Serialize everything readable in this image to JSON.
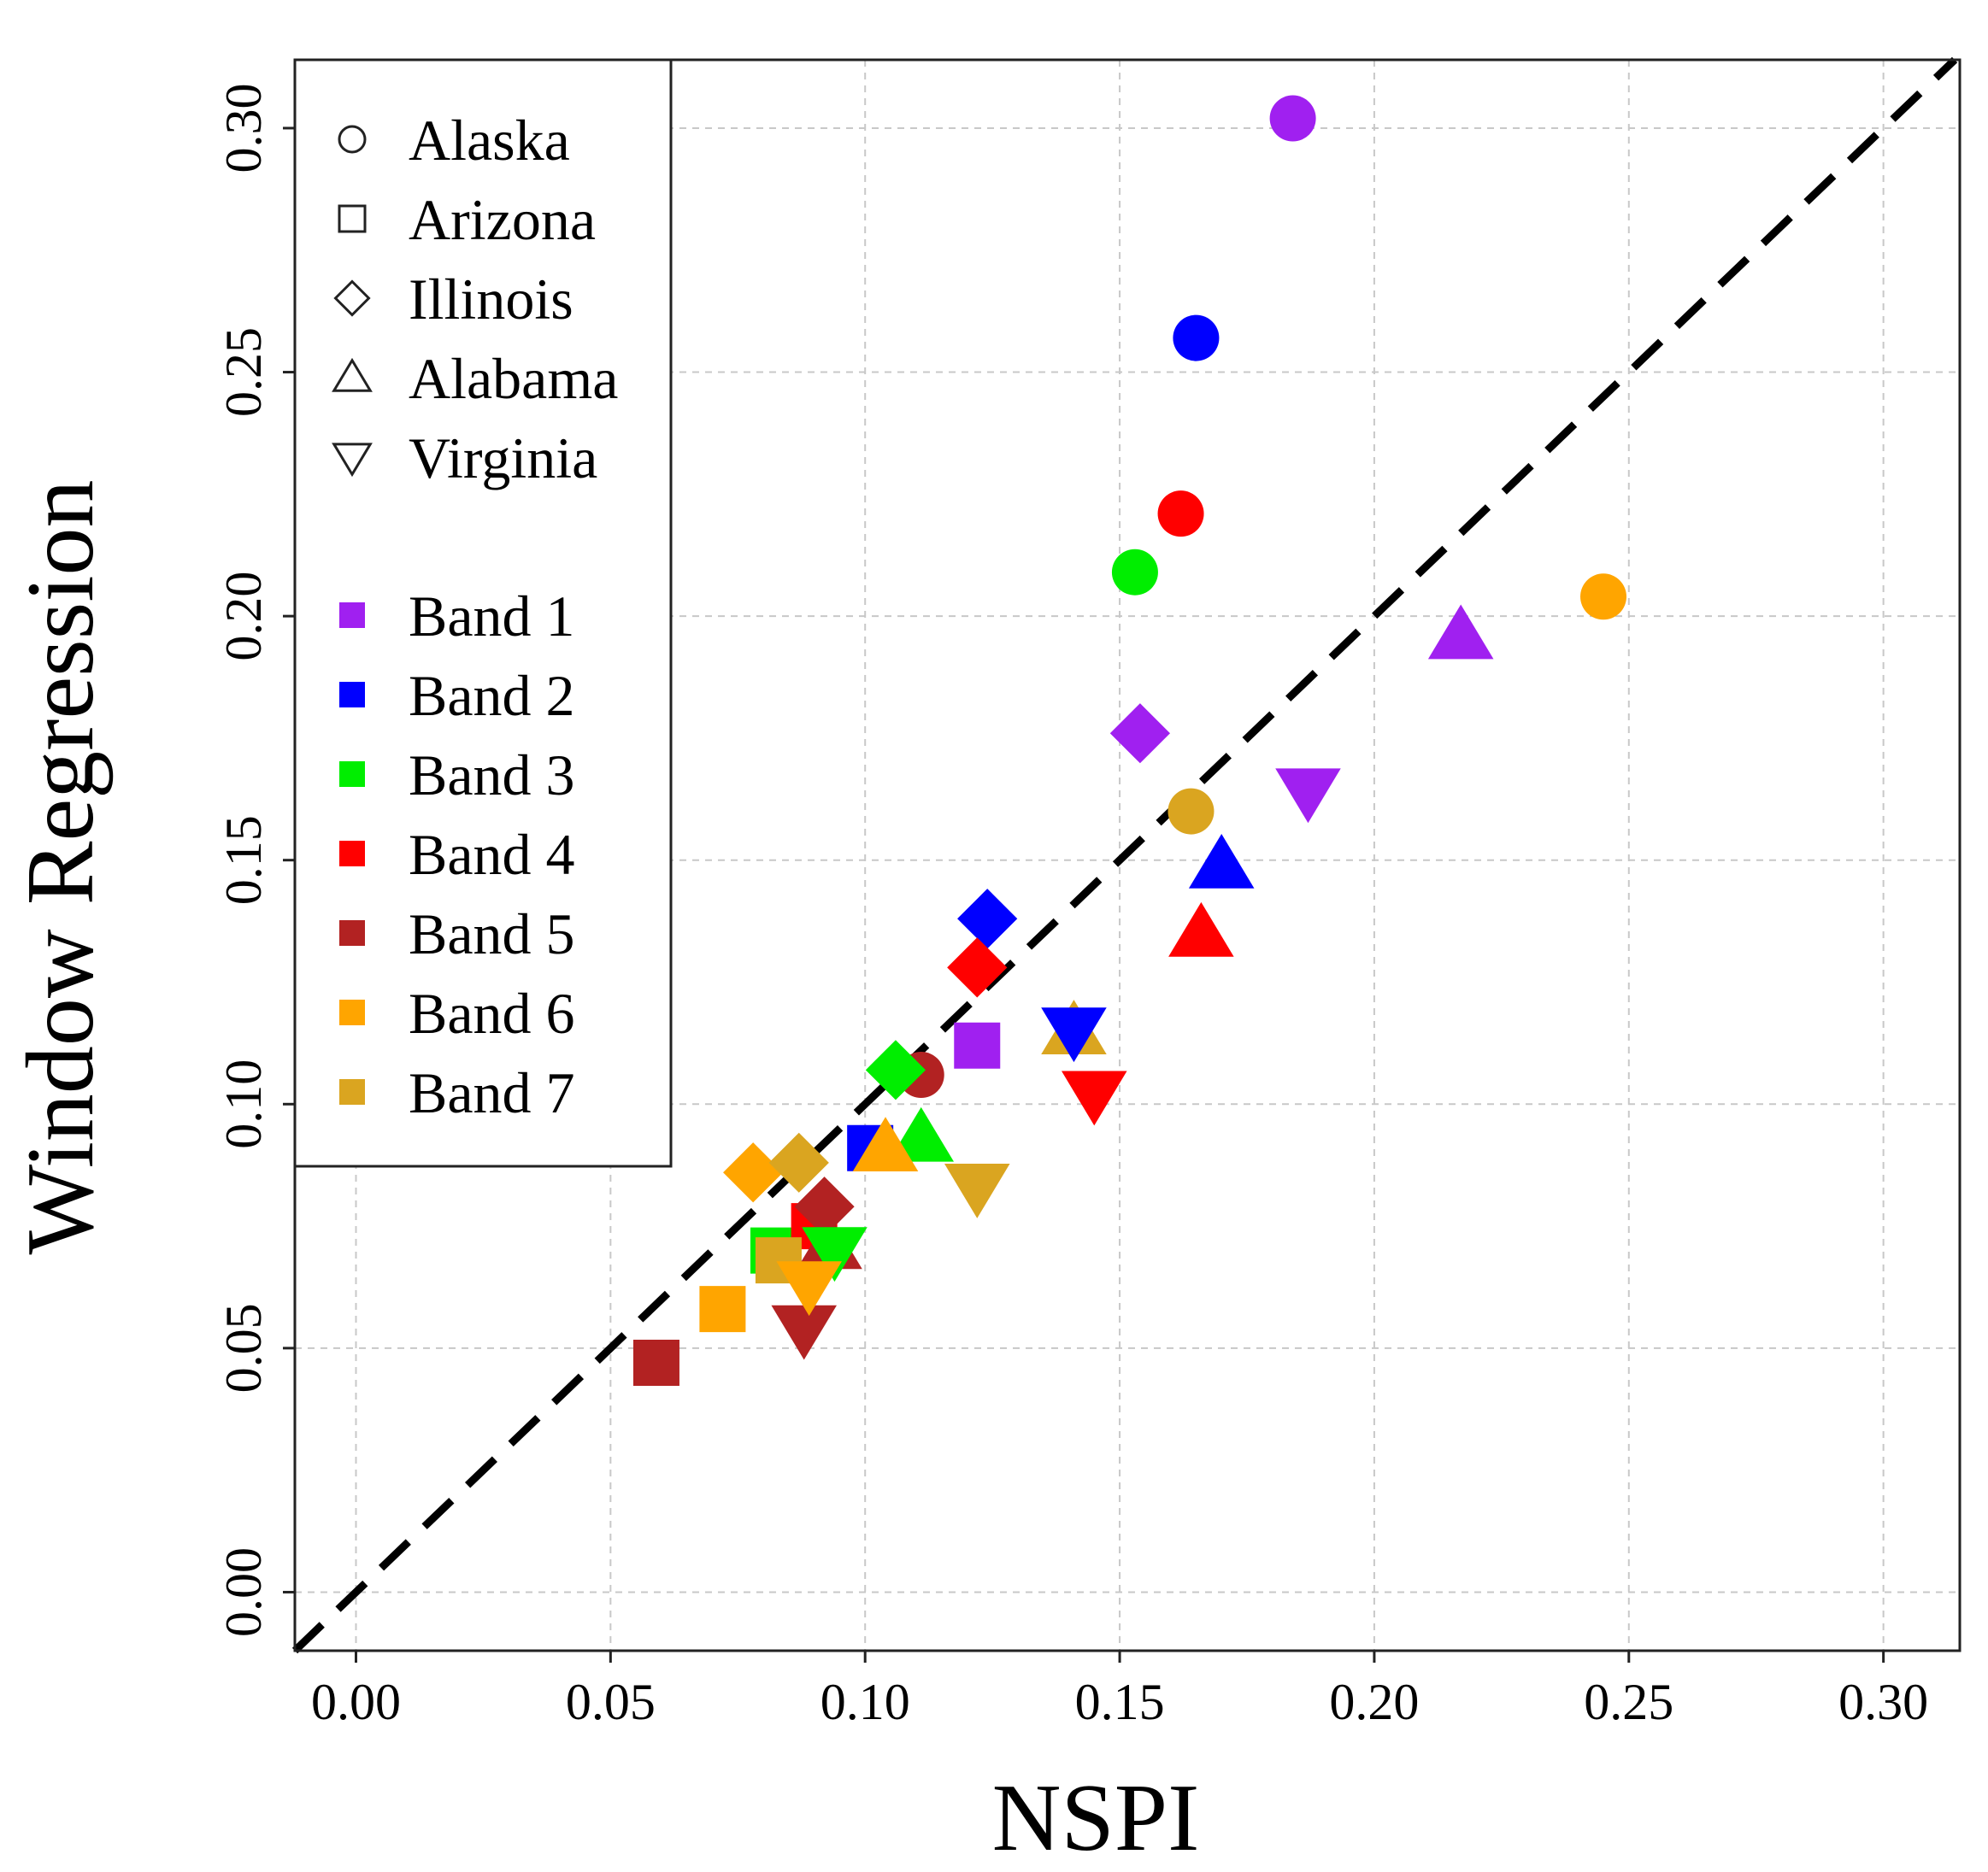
{
  "chart_data": {
    "type": "scatter",
    "xlabel": "NSPI",
    "ylabel": "Window Regression",
    "xlim": [
      -0.012,
      0.315
    ],
    "ylim": [
      -0.012,
      0.314
    ],
    "x_ticks": [
      "0.00",
      "0.05",
      "0.10",
      "0.15",
      "0.20",
      "0.25",
      "0.30"
    ],
    "y_ticks": [
      "0.00",
      "0.05",
      "0.10",
      "0.15",
      "0.20",
      "0.25",
      "0.30"
    ],
    "grid": true,
    "reference_line": "y = x (dashed)",
    "legend_position": "top-left",
    "states": [
      {
        "name": "Alaska",
        "shape": "circle"
      },
      {
        "name": "Arizona",
        "shape": "square"
      },
      {
        "name": "Illinois",
        "shape": "diamond"
      },
      {
        "name": "Alabama",
        "shape": "triangle-up"
      },
      {
        "name": "Virginia",
        "shape": "triangle-down"
      }
    ],
    "bands": [
      {
        "name": "Band 1",
        "color": "#A020F0"
      },
      {
        "name": "Band 2",
        "color": "#0000FF"
      },
      {
        "name": "Band 3",
        "color": "#00EE00"
      },
      {
        "name": "Band 4",
        "color": "#FF0000"
      },
      {
        "name": "Band 5",
        "color": "#B22222"
      },
      {
        "name": "Band 6",
        "color": "#FFA500"
      },
      {
        "name": "Band 7",
        "color": "#DAA520"
      }
    ],
    "points": [
      {
        "state": "Alaska",
        "band": "Band 1",
        "x": 0.184,
        "y": 0.302
      },
      {
        "state": "Alaska",
        "band": "Band 2",
        "x": 0.165,
        "y": 0.257
      },
      {
        "state": "Alaska",
        "band": "Band 3",
        "x": 0.153,
        "y": 0.209
      },
      {
        "state": "Alaska",
        "band": "Band 4",
        "x": 0.162,
        "y": 0.221
      },
      {
        "state": "Alaska",
        "band": "Band 5",
        "x": 0.111,
        "y": 0.106
      },
      {
        "state": "Alaska",
        "band": "Band 6",
        "x": 0.245,
        "y": 0.204
      },
      {
        "state": "Alaska",
        "band": "Band 7",
        "x": 0.164,
        "y": 0.16
      },
      {
        "state": "Arizona",
        "band": "Band 1",
        "x": 0.122,
        "y": 0.112
      },
      {
        "state": "Arizona",
        "band": "Band 2",
        "x": 0.101,
        "y": 0.091
      },
      {
        "state": "Arizona",
        "band": "Band 3",
        "x": 0.082,
        "y": 0.07
      },
      {
        "state": "Arizona",
        "band": "Band 4",
        "x": 0.09,
        "y": 0.075
      },
      {
        "state": "Arizona",
        "band": "Band 5",
        "x": 0.059,
        "y": 0.047
      },
      {
        "state": "Arizona",
        "band": "Band 6",
        "x": 0.072,
        "y": 0.058
      },
      {
        "state": "Arizona",
        "band": "Band 7",
        "x": 0.083,
        "y": 0.068
      },
      {
        "state": "Illinois",
        "band": "Band 1",
        "x": 0.154,
        "y": 0.176
      },
      {
        "state": "Illinois",
        "band": "Band 2",
        "x": 0.124,
        "y": 0.138
      },
      {
        "state": "Illinois",
        "band": "Band 3",
        "x": 0.106,
        "y": 0.107
      },
      {
        "state": "Illinois",
        "band": "Band 4",
        "x": 0.122,
        "y": 0.128
      },
      {
        "state": "Illinois",
        "band": "Band 5",
        "x": 0.092,
        "y": 0.079
      },
      {
        "state": "Illinois",
        "band": "Band 6",
        "x": 0.078,
        "y": 0.086
      },
      {
        "state": "Illinois",
        "band": "Band 7",
        "x": 0.087,
        "y": 0.088
      },
      {
        "state": "Alabama",
        "band": "Band 1",
        "x": 0.217,
        "y": 0.196
      },
      {
        "state": "Alabama",
        "band": "Band 2",
        "x": 0.17,
        "y": 0.149
      },
      {
        "state": "Alabama",
        "band": "Band 3",
        "x": 0.111,
        "y": 0.093
      },
      {
        "state": "Alabama",
        "band": "Band 4",
        "x": 0.166,
        "y": 0.135
      },
      {
        "state": "Alabama",
        "band": "Band 5",
        "x": 0.093,
        "y": 0.071
      },
      {
        "state": "Alabama",
        "band": "Band 6",
        "x": 0.104,
        "y": 0.091
      },
      {
        "state": "Alabama",
        "band": "Band 7",
        "x": 0.141,
        "y": 0.115
      },
      {
        "state": "Virginia",
        "band": "Band 1",
        "x": 0.187,
        "y": 0.164
      },
      {
        "state": "Virginia",
        "band": "Band 2",
        "x": 0.141,
        "y": 0.115
      },
      {
        "state": "Virginia",
        "band": "Band 3",
        "x": 0.094,
        "y": 0.07
      },
      {
        "state": "Virginia",
        "band": "Band 4",
        "x": 0.145,
        "y": 0.102
      },
      {
        "state": "Virginia",
        "band": "Band 5",
        "x": 0.088,
        "y": 0.054
      },
      {
        "state": "Virginia",
        "band": "Band 6",
        "x": 0.089,
        "y": 0.063
      },
      {
        "state": "Virginia",
        "band": "Band 7",
        "x": 0.122,
        "y": 0.083
      }
    ]
  }
}
